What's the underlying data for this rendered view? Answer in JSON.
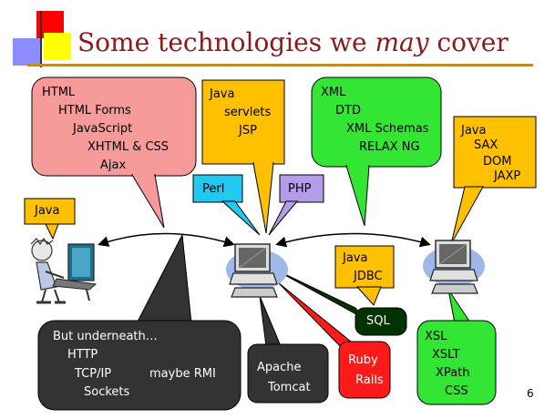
{
  "title": {
    "prefix": "Some technologies we ",
    "emphasis": "may",
    "suffix": " cover"
  },
  "slide_number": "6",
  "client_side": {
    "lines": [
      "HTML",
      "HTML Forms",
      "JavaScript",
      "XHTML & CSS",
      "Ajax"
    ],
    "color": "#f79a9a"
  },
  "client_language": "Java",
  "server_side": {
    "lines": [
      "Java",
      "servlets",
      "JSP"
    ],
    "color": "#ffc000"
  },
  "scripting": [
    {
      "label": "Perl",
      "color": "#22c8f0"
    },
    {
      "label": "PHP",
      "color": "#b39ce8"
    }
  ],
  "xml_tech": {
    "lines": [
      "XML",
      "DTD",
      "XML Schemas",
      "RELAX NG"
    ],
    "color": "#33e633"
  },
  "java_xml": {
    "lines": [
      "Java",
      "SAX",
      "DOM",
      "JAXP"
    ],
    "color": "#ffc000"
  },
  "jdbc": {
    "lines": [
      "Java",
      "JDBC"
    ],
    "color": "#ffc000"
  },
  "sql": {
    "label": "SQL",
    "color": "#003300"
  },
  "ruby": {
    "lines": [
      "Ruby",
      "Rails"
    ],
    "color": "#ff1a1a"
  },
  "apache": {
    "lines": [
      "Apache",
      "Tomcat"
    ],
    "color": "#333333"
  },
  "underneath": {
    "lines": [
      "But underneath…",
      "HTTP",
      "TCP/IP",
      "maybe RMI",
      "Sockets"
    ],
    "color": "#333333"
  },
  "xsl": {
    "lines": [
      "XSL",
      "XSLT",
      "XPath",
      "CSS"
    ],
    "color": "#33e633"
  }
}
